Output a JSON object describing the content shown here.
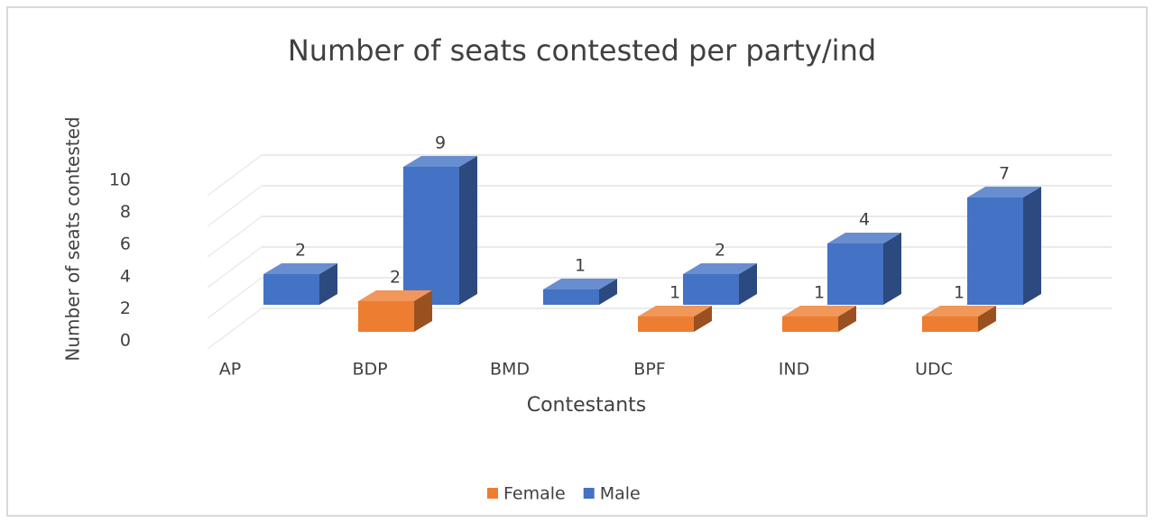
{
  "chart_data": {
    "type": "bar3d",
    "title": "Number of seats contested per party/ind",
    "x_label": "Contestants",
    "y_label": "Number of seats contested",
    "categories": [
      "AP",
      "BDP",
      "BMD",
      "BPF",
      "IND",
      "UDC"
    ],
    "series": [
      {
        "name": "Female",
        "color": "#ed7d31",
        "values": [
          null,
          2,
          null,
          1,
          1,
          1
        ]
      },
      {
        "name": "Male",
        "color": "#4472c4",
        "values": [
          2,
          9,
          1,
          2,
          4,
          7
        ]
      }
    ],
    "ylim": [
      0,
      10
    ],
    "yticks": [
      0,
      2,
      4,
      6,
      8,
      10
    ],
    "grid": true,
    "legend": "bottom"
  }
}
